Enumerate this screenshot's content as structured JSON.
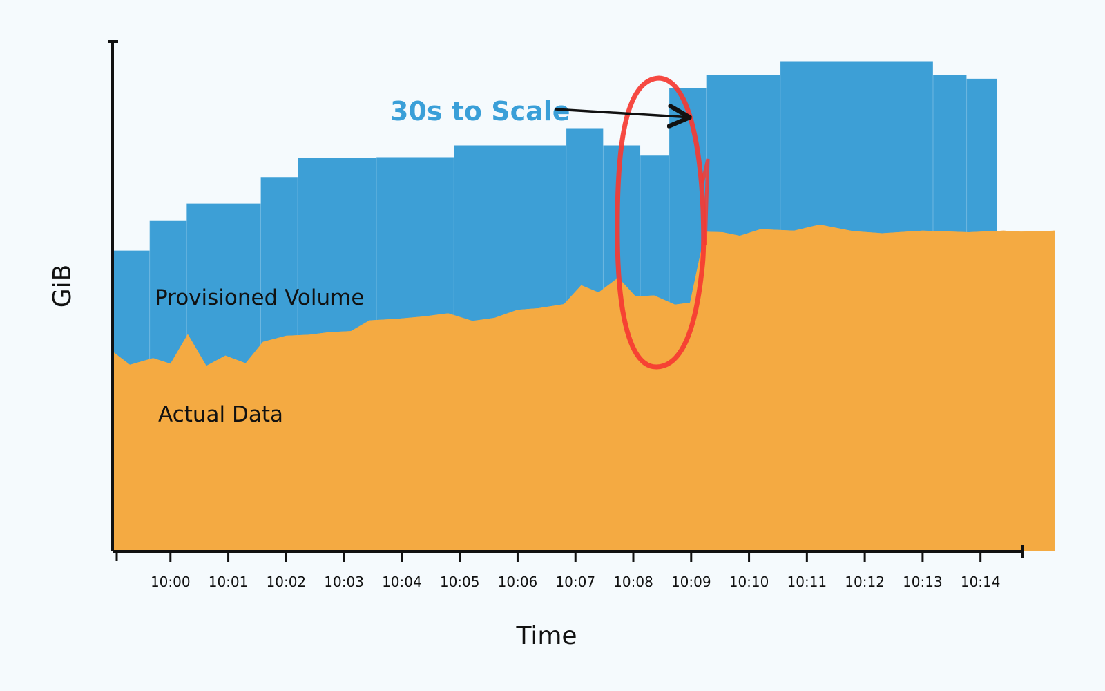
{
  "chart_data": {
    "type": "area",
    "xlabel": "Time",
    "ylabel": "GiB",
    "x_ticks": [
      "10:00",
      "10:01",
      "10:02",
      "10:03",
      "10:04",
      "10:05",
      "10:06",
      "10:07",
      "10:08",
      "10:09",
      "10:10",
      "10:11",
      "10:12",
      "10:13",
      "10:14"
    ],
    "xlim": [
      -1.0,
      14.72
    ],
    "ylim": [
      0,
      100
    ],
    "grid": false,
    "legend": "none",
    "series": [
      {
        "name": "Provisioned Volume",
        "color": "#3d9fd6",
        "shape": "step",
        "points": [
          [
            -1.0,
            59.0
          ],
          [
            -0.36,
            59.0
          ],
          [
            -0.36,
            64.8
          ],
          [
            0.28,
            64.8
          ],
          [
            0.28,
            68.2
          ],
          [
            1.56,
            68.2
          ],
          [
            1.56,
            73.4
          ],
          [
            2.2,
            73.4
          ],
          [
            2.2,
            77.2
          ],
          [
            3.56,
            77.2
          ],
          [
            3.56,
            77.3
          ],
          [
            4.9,
            77.3
          ],
          [
            4.9,
            79.6
          ],
          [
            6.84,
            79.6
          ],
          [
            6.84,
            83.0
          ],
          [
            7.48,
            83.0
          ],
          [
            7.48,
            79.6
          ],
          [
            8.12,
            79.6
          ],
          [
            8.12,
            77.6
          ],
          [
            8.62,
            77.6
          ],
          [
            8.62,
            90.8
          ],
          [
            9.26,
            90.8
          ],
          [
            9.26,
            93.5
          ],
          [
            10.54,
            93.5
          ],
          [
            10.54,
            96.0
          ],
          [
            13.18,
            96.0
          ],
          [
            13.18,
            93.5
          ],
          [
            13.76,
            93.5
          ],
          [
            13.76,
            92.7
          ],
          [
            14.28,
            92.7
          ]
        ]
      },
      {
        "name": "Actual Data",
        "color": "#f4aa42",
        "shape": "linear",
        "points": [
          [
            -1.0,
            39.2
          ],
          [
            -0.7,
            36.6
          ],
          [
            -0.3,
            37.9
          ],
          [
            0.0,
            36.8
          ],
          [
            0.3,
            42.6
          ],
          [
            0.62,
            36.4
          ],
          [
            0.95,
            38.4
          ],
          [
            1.3,
            36.9
          ],
          [
            1.6,
            41.1
          ],
          [
            2.0,
            42.3
          ],
          [
            2.4,
            42.5
          ],
          [
            2.75,
            43.0
          ],
          [
            3.12,
            43.2
          ],
          [
            3.44,
            45.3
          ],
          [
            3.9,
            45.6
          ],
          [
            4.4,
            46.1
          ],
          [
            4.8,
            46.7
          ],
          [
            5.22,
            45.2
          ],
          [
            5.6,
            45.8
          ],
          [
            6.0,
            47.4
          ],
          [
            6.36,
            47.7
          ],
          [
            6.8,
            48.5
          ],
          [
            7.1,
            52.2
          ],
          [
            7.4,
            50.8
          ],
          [
            7.74,
            53.7
          ],
          [
            8.04,
            50.0
          ],
          [
            8.36,
            50.2
          ],
          [
            8.72,
            48.4
          ],
          [
            8.98,
            48.8
          ],
          [
            9.24,
            62.7
          ],
          [
            9.54,
            62.6
          ],
          [
            9.84,
            61.9
          ],
          [
            10.2,
            63.2
          ],
          [
            10.78,
            62.9
          ],
          [
            11.22,
            64.1
          ],
          [
            11.8,
            62.8
          ],
          [
            12.3,
            62.4
          ],
          [
            13.0,
            62.9
          ],
          [
            13.8,
            62.6
          ],
          [
            14.4,
            62.9
          ],
          [
            14.7,
            62.7
          ],
          [
            15.28,
            62.9
          ]
        ]
      }
    ],
    "annotations": [
      {
        "text": "30s to Scale",
        "color": "#3a9fd8",
        "target_x": 9.18,
        "target_y": 86.5
      }
    ]
  }
}
